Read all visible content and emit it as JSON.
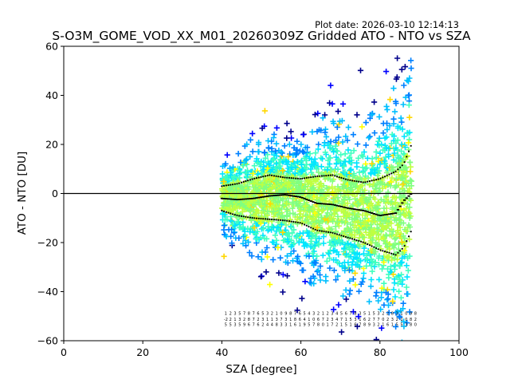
{
  "chart_data": {
    "type": "scatter",
    "title": "S-O3M_GOME_VOD_XX_M01_20260309Z Gridded ATO - NTO vs SZA",
    "plot_date": "Plot date: 2026-03-10 12:14:13",
    "xlabel": "SZA [degree]",
    "ylabel": "ATO - NTO [DU]",
    "xlim": [
      0,
      100
    ],
    "ylim": [
      -60,
      60
    ],
    "xticks": [
      0,
      20,
      40,
      60,
      80,
      100
    ],
    "yticks": [
      -60,
      -40,
      -20,
      0,
      20,
      40,
      60
    ],
    "xtick_labels": [
      "0",
      "20",
      "40",
      "60",
      "80",
      "100"
    ],
    "ytick_labels": [
      "−60",
      "−40",
      "−20",
      "0",
      "20",
      "40",
      "60"
    ],
    "zero_line": 0,
    "point_cloud": {
      "x_range": [
        40,
        88
      ],
      "marker": "plus",
      "color_scale": [
        "#00008b",
        "#0000ff",
        "#0080ff",
        "#00bfff",
        "#00e5ff",
        "#40ffbf",
        "#80ff80",
        "#c0ff40",
        "#ffff00",
        "#ffd700"
      ]
    },
    "mean_series": {
      "name": "mean",
      "x": [
        40,
        44,
        48,
        52,
        56,
        60,
        64,
        68,
        72,
        76,
        80,
        84,
        86,
        88
      ],
      "y": [
        -2,
        -2.5,
        -2,
        -1,
        -0.5,
        -1.5,
        -4,
        -4.5,
        -6,
        -7,
        -9,
        -8,
        -3,
        0
      ]
    },
    "upper_std_series": {
      "name": "mean + std",
      "x": [
        40,
        44,
        48,
        52,
        56,
        60,
        64,
        68,
        72,
        76,
        80,
        84,
        86,
        88
      ],
      "y": [
        3,
        4,
        6,
        7.5,
        6.5,
        6,
        7,
        7.5,
        5.5,
        4.5,
        6,
        9,
        12,
        20
      ]
    },
    "lower_std_series": {
      "name": "mean - std",
      "x": [
        40,
        44,
        48,
        52,
        56,
        60,
        64,
        68,
        72,
        76,
        80,
        84,
        86,
        88
      ],
      "y": [
        -7,
        -9,
        -10,
        -10.5,
        -11,
        -12,
        -15,
        -16,
        -18,
        -20,
        -23,
        -25,
        -22,
        -15
      ]
    },
    "count_labels": {
      "row1_y": -49.5,
      "row2_y": -51.8,
      "row3_y": -54,
      "x_range": [
        41,
        89
      ],
      "row1": [
        "1",
        "2",
        "3",
        "5",
        "7",
        "8",
        "7",
        "6",
        "5",
        "3",
        "2",
        "1",
        "0",
        "9",
        "8",
        "7",
        "6",
        "5",
        "4",
        "3",
        "2",
        "1",
        "2",
        "3",
        "4",
        "5",
        "6",
        "7",
        "8",
        "3",
        "5",
        "1",
        "5",
        "3",
        "2",
        "2",
        "8",
        "3",
        "1",
        "0",
        "9",
        "8"
      ],
      "row2": [
        "-2",
        "2",
        "1",
        "3",
        "2",
        "8",
        "7",
        "2",
        "3",
        "1",
        "1",
        "3",
        "7",
        "3",
        "1",
        "8",
        "6",
        "4",
        "1",
        "0",
        "6",
        "7",
        "2",
        "3",
        "4",
        "7",
        "1",
        "5",
        "3",
        "1",
        "6",
        "2",
        "7",
        "7",
        "0",
        "2",
        "3",
        "2",
        "1",
        "0",
        "8",
        "2"
      ],
      "row3": [
        "5",
        "5",
        "3",
        "5",
        "9",
        "6",
        "7",
        "6",
        "2",
        "4",
        "4",
        "8",
        "3",
        "3",
        "1",
        "6",
        "1",
        "9",
        "5",
        "7",
        "8",
        "0",
        "1",
        "7",
        "2",
        "1",
        "5",
        "1",
        "6",
        "7",
        "8",
        "9",
        "3",
        "2",
        "1",
        "6",
        "1",
        "5",
        "5",
        "3",
        "8",
        "0"
      ]
    }
  }
}
